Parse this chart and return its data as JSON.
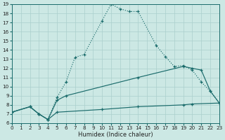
{
  "xlabel": "Humidex (Indice chaleur)",
  "xlim": [
    0,
    23
  ],
  "ylim": [
    6,
    19
  ],
  "xticks": [
    0,
    1,
    2,
    3,
    4,
    5,
    6,
    7,
    8,
    9,
    10,
    11,
    12,
    13,
    14,
    15,
    16,
    17,
    18,
    19,
    20,
    21,
    22,
    23
  ],
  "yticks": [
    6,
    7,
    8,
    9,
    10,
    11,
    12,
    13,
    14,
    15,
    16,
    17,
    18,
    19
  ],
  "bg_color": "#cce8e4",
  "line_color": "#1a6b6b",
  "grid_color": "#aacfcc",
  "curve1_x": [
    0,
    2,
    3,
    4,
    5,
    6,
    7,
    8,
    10,
    11,
    12,
    13,
    14,
    16,
    17,
    18,
    19,
    20,
    21,
    22,
    23
  ],
  "curve1_y": [
    7.2,
    7.8,
    7.0,
    6.4,
    8.8,
    10.5,
    13.2,
    13.5,
    17.2,
    19.0,
    18.5,
    18.2,
    18.2,
    14.5,
    13.3,
    12.2,
    12.3,
    11.8,
    10.5,
    9.5,
    8.2
  ],
  "curve2_x": [
    0,
    2,
    3,
    4,
    5,
    6,
    14,
    19,
    20,
    21,
    22,
    23
  ],
  "curve2_y": [
    7.2,
    7.8,
    7.0,
    6.4,
    8.5,
    9.0,
    11.0,
    12.2,
    12.0,
    11.8,
    9.5,
    8.2
  ],
  "curve3_x": [
    0,
    2,
    3,
    4,
    5,
    10,
    14,
    19,
    20,
    23
  ],
  "curve3_y": [
    7.2,
    7.8,
    7.0,
    6.4,
    7.2,
    7.5,
    7.8,
    8.0,
    8.1,
    8.2
  ],
  "xlabel_fontsize": 6.0,
  "tick_fontsize": 5.2
}
